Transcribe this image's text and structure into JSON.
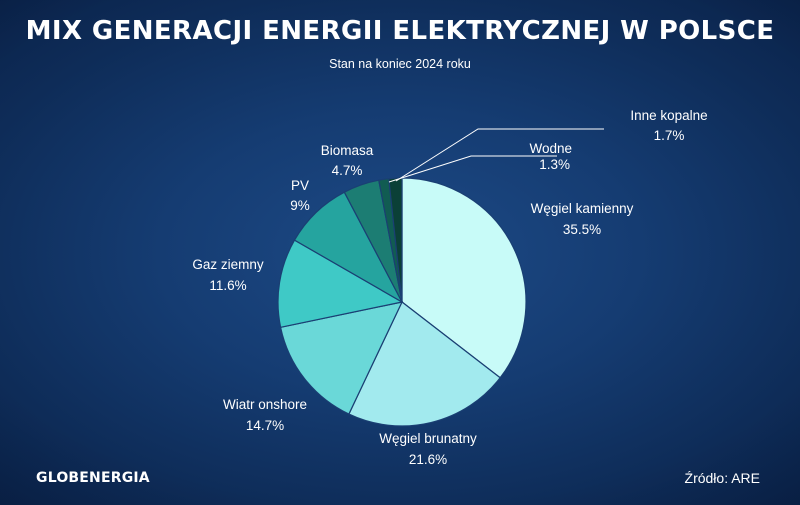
{
  "header": {
    "title": "MIX GENERACJI ENERGII ELEKTRYCZNEJ W POLSCE",
    "subtitle": "Stan na koniec 2024 roku"
  },
  "footer": {
    "logo": "GLOBENERGIA",
    "source": "Źródło: ARE"
  },
  "chart_data": {
    "type": "pie",
    "title": "MIX GENERACJI ENERGII ELEKTRYCZNEJ W POLSCE",
    "subtitle": "Stan na koniec 2024 roku",
    "start_direction": "top, clockwise",
    "slices": [
      {
        "label": "Węgiel kamienny",
        "value": 35.5,
        "value_label": "35.5%",
        "color": "#c8fbf8"
      },
      {
        "label": "Węgiel brunatny",
        "value": 21.6,
        "value_label": "21.6%",
        "color": "#a2eaee"
      },
      {
        "label": "Wiatr onshore",
        "value": 14.7,
        "value_label": "14.7%",
        "color": "#6ad8d8"
      },
      {
        "label": "Gaz ziemny",
        "value": 11.6,
        "value_label": "11.6%",
        "color": "#3fc9c6"
      },
      {
        "label": "PV",
        "value": 9,
        "value_label": "9%",
        "color": "#25a49f"
      },
      {
        "label": "Biomasa",
        "value": 4.7,
        "value_label": "4.7%",
        "color": "#1c7d73"
      },
      {
        "label": "Wodne",
        "value": 1.3,
        "value_label": "1.3%",
        "color": "#115c52"
      },
      {
        "label": "Inne kopalne",
        "value": 1.7,
        "value_label": "1.7%",
        "color": "#0b4037"
      }
    ]
  }
}
